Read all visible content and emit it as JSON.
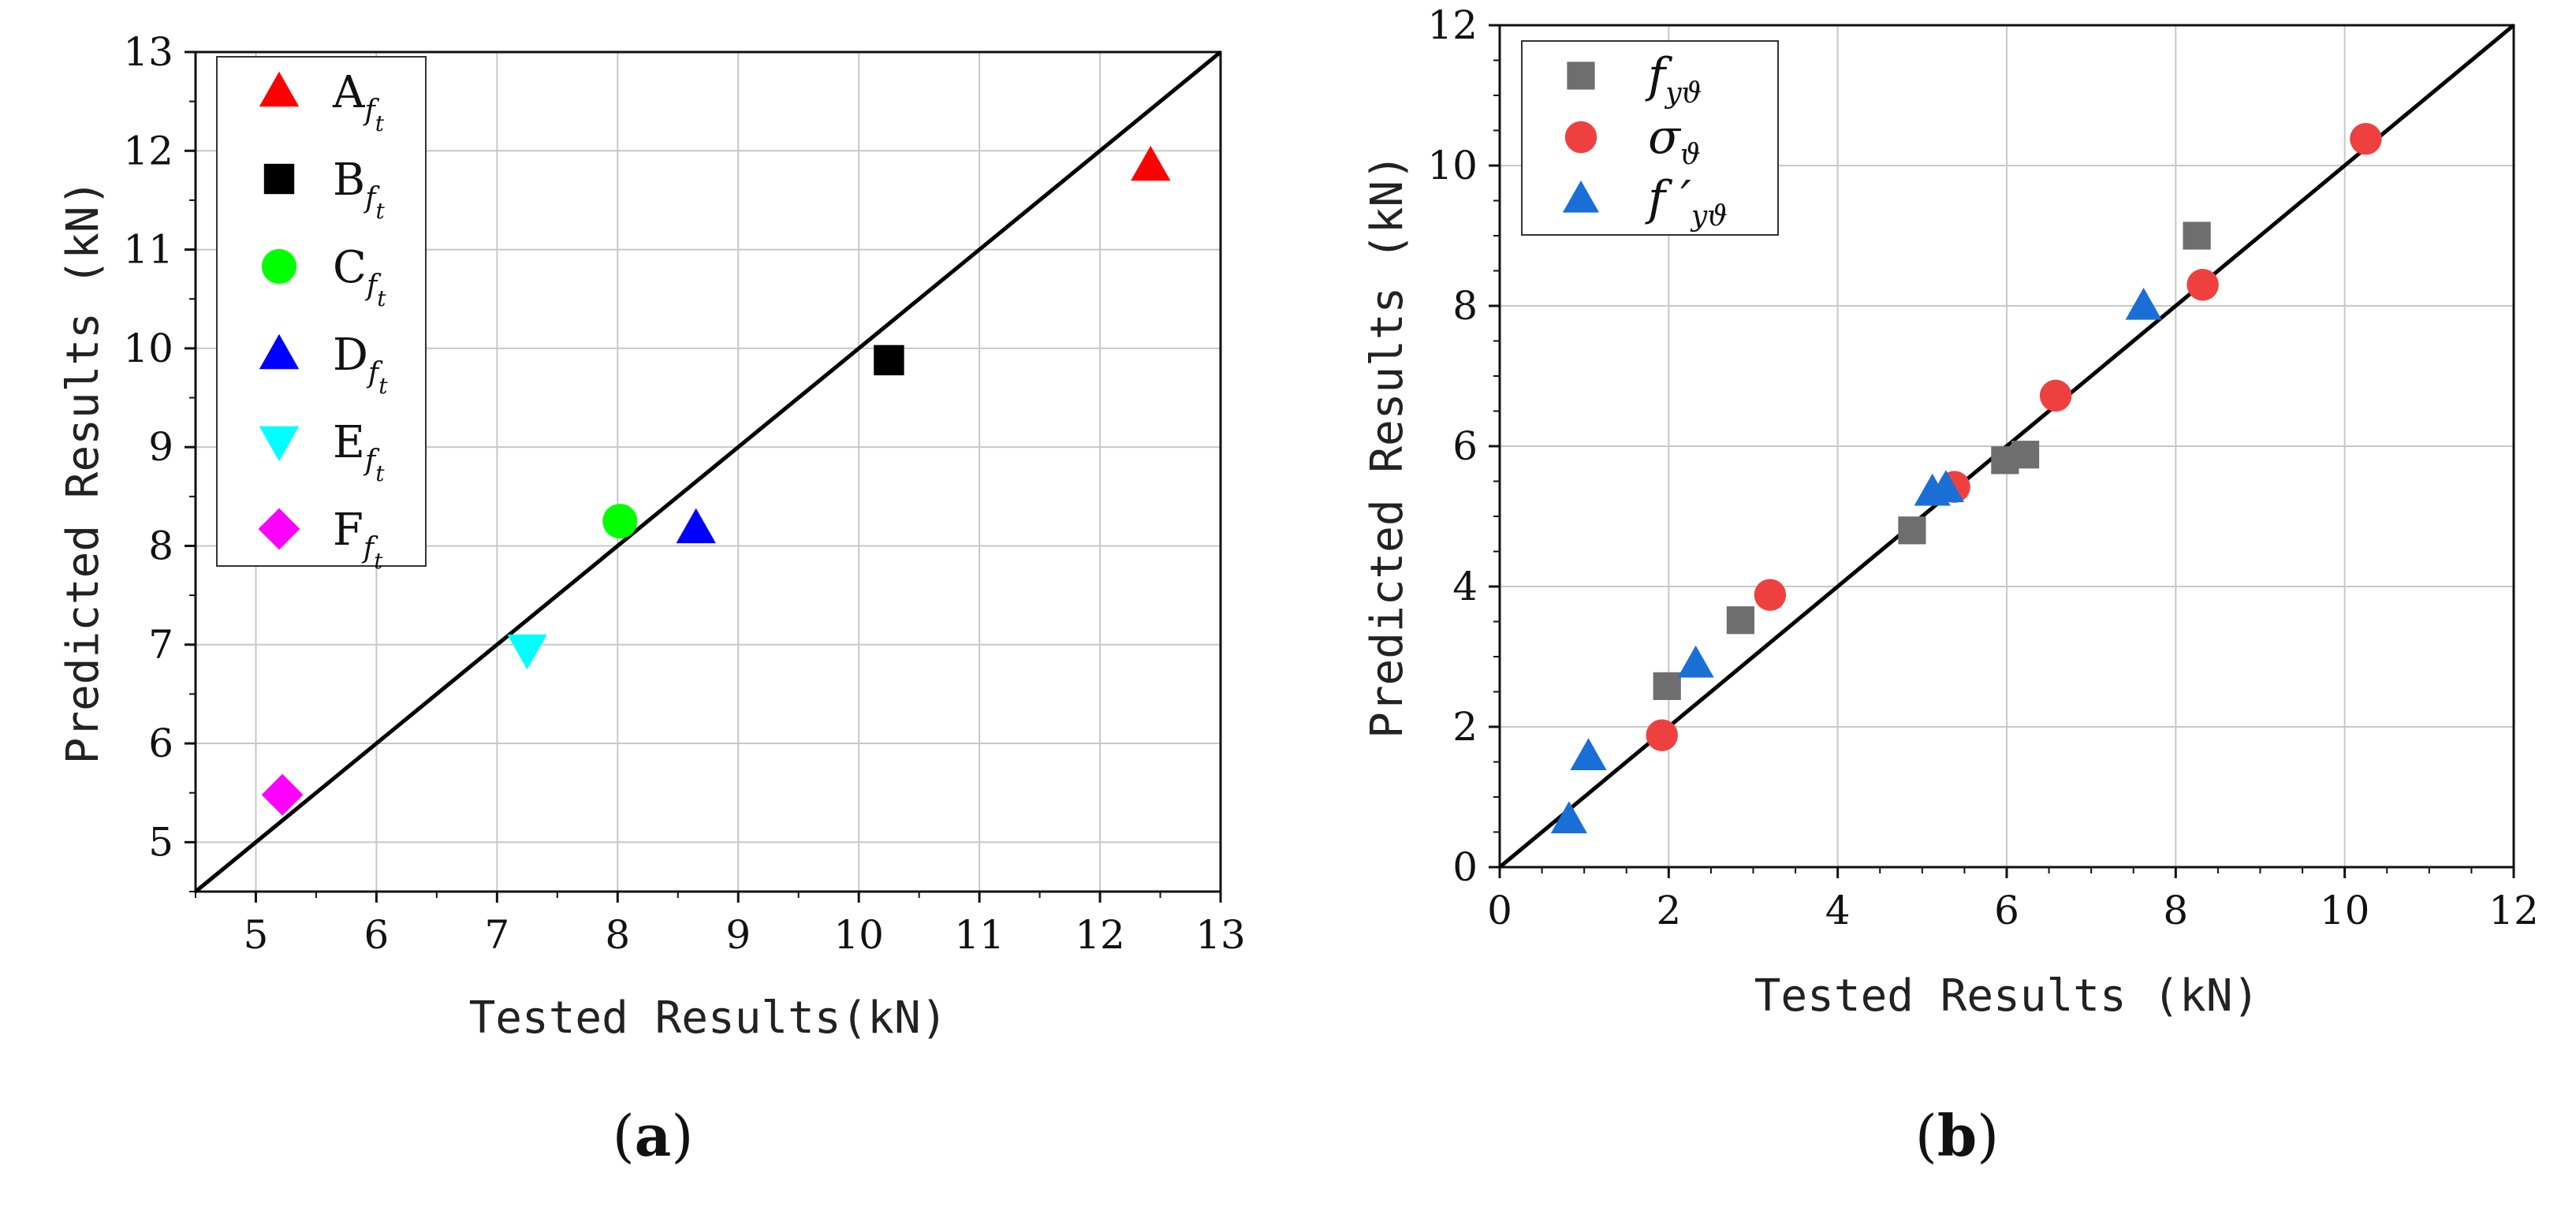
{
  "chart_data": [
    {
      "id": "a",
      "type": "scatter",
      "caption": "a",
      "xlabel": "Tested Results(kN)",
      "ylabel": "Predicted Results  (kN)",
      "xlim": [
        4.5,
        13
      ],
      "ylim": [
        4.5,
        13
      ],
      "xticks": [
        5,
        6,
        7,
        8,
        9,
        10,
        11,
        12,
        13
      ],
      "yticks": [
        5,
        6,
        7,
        8,
        9,
        10,
        11,
        12,
        13
      ],
      "grid": true,
      "reference_line": {
        "from": [
          4.5,
          4.5
        ],
        "to": [
          13,
          13
        ]
      },
      "legend_position": "top-left",
      "series": [
        {
          "name": "A",
          "sub": "f",
          "subsub": "t",
          "marker": "triangle-up",
          "color": "#ff0000",
          "points": [
            [
              12.42,
              11.85
            ]
          ]
        },
        {
          "name": "B",
          "sub": "f",
          "subsub": "t",
          "marker": "square",
          "color": "#000000",
          "points": [
            [
              10.25,
              9.88
            ]
          ]
        },
        {
          "name": "C",
          "sub": "f",
          "subsub": "t",
          "marker": "circle",
          "color": "#00ff00",
          "points": [
            [
              8.02,
              8.25
            ]
          ]
        },
        {
          "name": "D",
          "sub": "f",
          "subsub": "t",
          "marker": "triangle-up",
          "color": "#0000ff",
          "points": [
            [
              8.65,
              8.18
            ]
          ]
        },
        {
          "name": "E",
          "sub": "f",
          "subsub": "t",
          "marker": "triangle-down",
          "color": "#00ffff",
          "points": [
            [
              7.25,
              6.95
            ]
          ]
        },
        {
          "name": "F",
          "sub": "f",
          "subsub": "t",
          "marker": "diamond",
          "color": "#ff00ff",
          "points": [
            [
              5.22,
              5.48
            ]
          ]
        }
      ]
    },
    {
      "id": "b",
      "type": "scatter",
      "caption": "b",
      "xlabel": "Tested Results (kN)",
      "ylabel": "Predicted Results  (kN)",
      "xlim": [
        0,
        12
      ],
      "ylim": [
        0,
        12
      ],
      "xticks": [
        0,
        2,
        4,
        6,
        8,
        10,
        12
      ],
      "yticks": [
        0,
        2,
        4,
        6,
        8,
        10,
        12
      ],
      "grid": true,
      "reference_line": {
        "from": [
          0,
          0
        ],
        "to": [
          12,
          12
        ]
      },
      "legend_position": "top-left",
      "series": [
        {
          "name": "f",
          "sub": "yϑ",
          "marker": "square",
          "color": "#6e6e6e",
          "points": [
            [
              1.98,
              2.58
            ],
            [
              2.85,
              3.52
            ],
            [
              4.88,
              4.8
            ],
            [
              5.98,
              5.8
            ],
            [
              6.22,
              5.88
            ],
            [
              8.25,
              9.0
            ]
          ]
        },
        {
          "name": "σ",
          "sub": "ϑ",
          "marker": "circle",
          "color": "#ef4040",
          "points": [
            [
              1.92,
              1.88
            ],
            [
              3.2,
              3.88
            ],
            [
              5.38,
              5.42
            ],
            [
              6.58,
              6.72
            ],
            [
              8.32,
              8.3
            ],
            [
              10.25,
              10.38
            ]
          ]
        },
        {
          "name": "f ′",
          "sub": "yϑ",
          "marker": "triangle-up",
          "color": "#1a6fd6",
          "points": [
            [
              0.82,
              0.68
            ],
            [
              1.05,
              1.58
            ],
            [
              2.32,
              2.9
            ],
            [
              5.12,
              5.35
            ],
            [
              5.28,
              5.4
            ],
            [
              7.62,
              8.0
            ]
          ]
        }
      ]
    }
  ]
}
